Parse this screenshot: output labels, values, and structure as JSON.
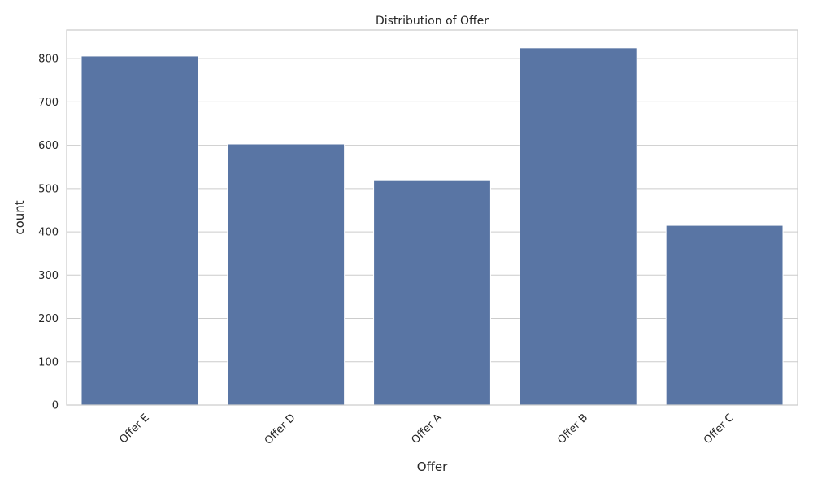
{
  "chart_data": {
    "type": "bar",
    "title": "Distribution of Offer",
    "xlabel": "Offer",
    "ylabel": "count",
    "categories": [
      "Offer E",
      "Offer D",
      "Offer A",
      "Offer B",
      "Offer C"
    ],
    "values": [
      806,
      603,
      520,
      825,
      415
    ],
    "ylim": [
      0,
      866
    ],
    "yticks": [
      0,
      100,
      200,
      300,
      400,
      500,
      600,
      700,
      800
    ],
    "grid": true,
    "legend": false,
    "colors": {
      "bar": "#5975a4",
      "grid": "#cccccc",
      "text": "#262626"
    }
  }
}
